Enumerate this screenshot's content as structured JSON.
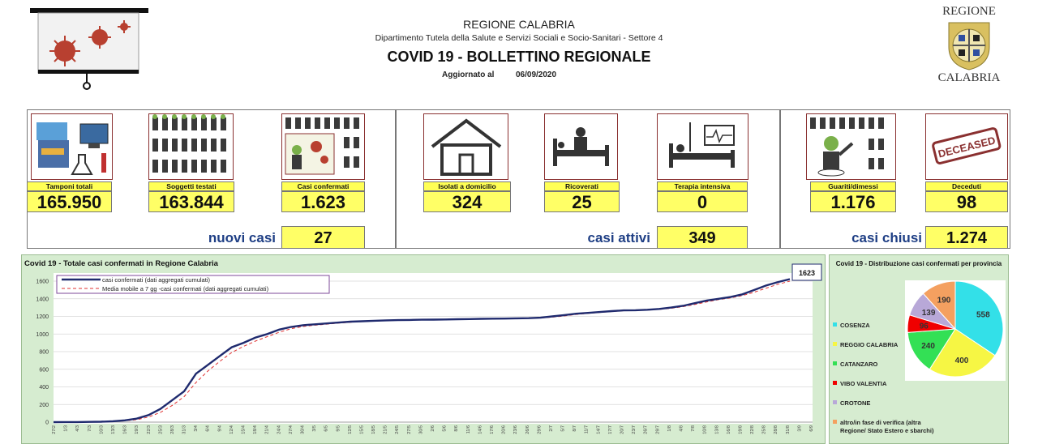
{
  "header": {
    "region": "REGIONE CALABRIA",
    "department": "Dipartimento Tutela della Salute e Servizi Sociali e Socio-Sanitari - Settore 4",
    "title": "COVID 19 - BOLLETTINO REGIONALE",
    "updated_label": "Aggiornato al",
    "updated_date": "06/09/2020",
    "logo_top": "REGIONE",
    "logo_bottom": "CALABRIA"
  },
  "stats": {
    "tamponi": {
      "label": "Tamponi totali",
      "value": "165.950"
    },
    "soggetti": {
      "label": "Soggetti testati",
      "value": "163.844"
    },
    "confermati": {
      "label": "Casi confermati",
      "value": "1.623"
    },
    "isolati": {
      "label": "Isolati a domicilio",
      "value": "324"
    },
    "ricoverati": {
      "label": "Ricoverati",
      "value": "25"
    },
    "terapia": {
      "label": "Terapia intensiva",
      "value": "0"
    },
    "guariti": {
      "label": "Guariti/dimessi",
      "value": "1.176"
    },
    "deceduti": {
      "label": "Deceduti",
      "value": "98"
    }
  },
  "summary": {
    "nuovi_label": "nuovi casi",
    "nuovi_value": "27",
    "attivi_label": "casi attivi",
    "attivi_value": "349",
    "chiusi_label": "casi chiusi",
    "chiusi_value": "1.274"
  },
  "deceased_stamp": "DECEASED",
  "colors": {
    "line": "#1f2a6e",
    "avg": "#e03030",
    "tile_border": "#8a3030",
    "yellow": "#ffff66",
    "panel_green": "#d6ecd0"
  },
  "chart_data": [
    {
      "type": "line",
      "title": "Covid 19 - Totale casi confermati in Regione Calabria",
      "ylim": [
        0,
        1600
      ],
      "yticks": [
        "0",
        "200",
        "400",
        "600",
        "800",
        "1000",
        "1200",
        "1400",
        "1600"
      ],
      "xticks": [
        "27/2",
        "1/3",
        "4/3",
        "7/3",
        "10/3",
        "13/3",
        "16/3",
        "19/3",
        "22/3",
        "25/3",
        "28/3",
        "31/3",
        "3/4",
        "6/4",
        "9/4",
        "12/4",
        "15/4",
        "18/4",
        "21/4",
        "24/4",
        "27/4",
        "30/4",
        "3/5",
        "6/5",
        "9/5",
        "12/5",
        "15/5",
        "18/5",
        "21/5",
        "24/5",
        "27/5",
        "30/5",
        "2/6",
        "5/6",
        "8/6",
        "11/6",
        "14/6",
        "17/6",
        "20/6",
        "23/6",
        "26/6",
        "29/6",
        "2/7",
        "5/7",
        "8/7",
        "11/7",
        "14/7",
        "17/7",
        "20/7",
        "23/7",
        "26/7",
        "29/7",
        "1/8",
        "4/8",
        "7/8",
        "10/8",
        "13/8",
        "16/8",
        "19/8",
        "22/8",
        "25/8",
        "28/8",
        "31/8",
        "3/9",
        "6/9"
      ],
      "series": [
        {
          "name": "casi confermati (dati aggregati cumulati)",
          "values": [
            0,
            1,
            1,
            3,
            5,
            10,
            20,
            40,
            80,
            150,
            250,
            350,
            550,
            650,
            750,
            850,
            900,
            960,
            1000,
            1050,
            1080,
            1100,
            1110,
            1120,
            1130,
            1140,
            1145,
            1150,
            1155,
            1158,
            1160,
            1162,
            1163,
            1165,
            1168,
            1170,
            1172,
            1174,
            1175,
            1178,
            1180,
            1185,
            1200,
            1215,
            1230,
            1240,
            1250,
            1260,
            1268,
            1270,
            1275,
            1285,
            1300,
            1320,
            1350,
            1380,
            1400,
            1420,
            1450,
            1500,
            1550,
            1590,
            1623
          ]
        },
        {
          "name": "Media mobile a 7 gg -casi confermati (dati aggregati cumulati)",
          "values": [
            0,
            0,
            1,
            2,
            4,
            7,
            14,
            28,
            58,
            110,
            190,
            290,
            450,
            580,
            690,
            790,
            860,
            920,
            970,
            1020,
            1060,
            1085,
            1100,
            1112,
            1124,
            1133,
            1140,
            1146,
            1151,
            1155,
            1158,
            1160,
            1162,
            1164,
            1166,
            1168,
            1170,
            1172,
            1174,
            1176,
            1178,
            1182,
            1192,
            1205,
            1222,
            1234,
            1245,
            1255,
            1264,
            1268,
            1272,
            1280,
            1292,
            1310,
            1335,
            1365,
            1390,
            1410,
            1435,
            1475,
            1520,
            1565,
            1600
          ]
        }
      ],
      "end_label": "1623",
      "legend": "top-left"
    },
    {
      "type": "pie",
      "title": "Covid 19 - Distribuzione casi confermati per provincia",
      "slices": [
        {
          "name": "COSENZA",
          "value": 558,
          "color": "#33e0e8"
        },
        {
          "name": "REGGIO CALABRIA",
          "value": 400,
          "color": "#f6f644"
        },
        {
          "name": "CATANZARO",
          "value": 240,
          "color": "#33e055"
        },
        {
          "name": "VIBO VALENTIA",
          "value": 96,
          "color": "#f00000"
        },
        {
          "name": "CROTONE",
          "value": 139,
          "color": "#b8a8d8"
        },
        {
          "name": "altro/in fase di verifica (altra Regione/ Stato Estero e sbarchi)",
          "value": 190,
          "color": "#f4a060"
        }
      ]
    }
  ]
}
